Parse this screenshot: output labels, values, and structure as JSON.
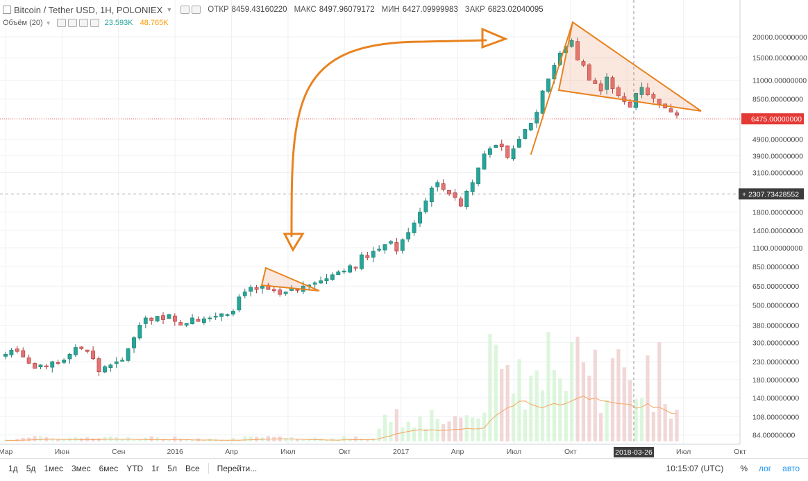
{
  "header": {
    "symbol": "Bitcoin / Tether USD, 1H, POLONIEX",
    "open_label": "ОТКР",
    "open_value": "8459.43160220",
    "high_label": "МАКС",
    "high_value": "8497.96079172",
    "low_label": "МИН",
    "low_value": "6427.09999983",
    "close_label": "ЗАКР",
    "close_value": "6823.02040095"
  },
  "volume_indicator": {
    "label": "Объём (20)",
    "v1": "23.593K",
    "v2": "48.765K",
    "v1_color": "#26a69a",
    "v2_color": "#ff9800"
  },
  "bottom_bar": {
    "ranges": [
      "1д",
      "5д",
      "1мес",
      "3мес",
      "6мес",
      "YTD",
      "1г",
      "5л",
      "Все"
    ],
    "goto": "Перейти...",
    "time": "10:15:07 (UTC)",
    "percent": "%",
    "log": "лог",
    "auto": "авто"
  },
  "chart_data": {
    "type": "candlestick",
    "scale": "log",
    "ylim": [
      74,
      29000
    ],
    "y_ticks": [
      "20000.00000000",
      "15000.00000000",
      "11000.00000000",
      "8500.00000000",
      "6475.00000000",
      "4900.00000000",
      "3900.00000000",
      "3100.00000000",
      "2307.73428552",
      "1800.00000000",
      "1400.00000000",
      "1100.00000000",
      "850.00000000",
      "650.00000000",
      "500.00000000",
      "380.00000000",
      "300.00000000",
      "230.00000000",
      "180.00000000",
      "140.00000000",
      "108.00000000",
      "84.00000000"
    ],
    "y_tick_values": [
      20000,
      15000,
      11000,
      8500,
      4900,
      3900,
      3100,
      1800,
      1400,
      1100,
      850,
      650,
      500,
      380,
      300,
      230,
      180,
      140,
      108,
      84
    ],
    "price_line": {
      "label": "6475.00000000",
      "value": 6475,
      "color": "#e53935"
    },
    "crosshair": {
      "label": "2307.73428552",
      "value": 2307.73428552,
      "x_label": "2018-03-26"
    },
    "x_labels": [
      "Мар",
      "Июн",
      "Сен",
      "2016",
      "Апр",
      "Июл",
      "Окт",
      "2017",
      "Апр",
      "Июл",
      "Окт",
      "2018",
      "Июл",
      "Окт"
    ],
    "closes": [
      255,
      270,
      265,
      245,
      225,
      210,
      220,
      215,
      230,
      225,
      235,
      255,
      280,
      275,
      265,
      240,
      200,
      215,
      220,
      230,
      235,
      275,
      320,
      380,
      420,
      405,
      430,
      410,
      440,
      400,
      380,
      390,
      420,
      400,
      415,
      420,
      430,
      445,
      440,
      460,
      560,
      600,
      640,
      620,
      650,
      620,
      610,
      580,
      600,
      630,
      615,
      650,
      660,
      680,
      700,
      720,
      760,
      790,
      800,
      860,
      840,
      1000,
      960,
      1050,
      1080,
      1150,
      1200,
      1050,
      1230,
      1360,
      1550,
      1800,
      2100,
      2500,
      2700,
      2450,
      2300,
      2200,
      1950,
      2400,
      2700,
      3300,
      4000,
      4300,
      4500,
      4400,
      3800,
      4300,
      4900,
      5600,
      6100,
      7100,
      9500,
      11200,
      13500,
      16000,
      17500,
      19000,
      14500,
      13500,
      11000,
      10500,
      9500,
      11500,
      9800,
      8900,
      8200,
      7600,
      9200,
      10000,
      9000,
      8600,
      7900,
      7500,
      7100,
      6800
    ],
    "volume_ma_label": "Объём MA",
    "up_color": "#26a69a",
    "down_color": "#e57373",
    "volume_up_color": "#d6f5d6",
    "volume_down_color": "#f0d0d0",
    "annotation_color": "#e8821e"
  }
}
